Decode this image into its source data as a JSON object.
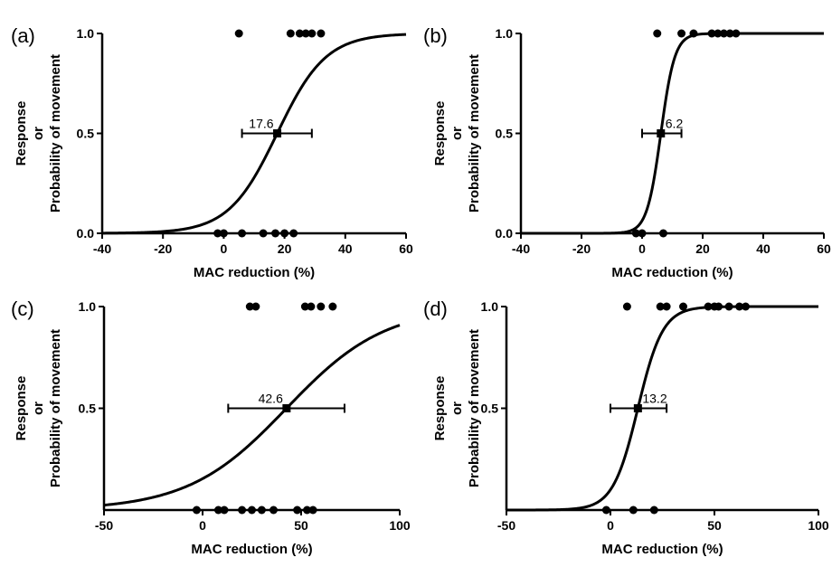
{
  "chart_data": [
    {
      "type": "scatter",
      "panel_label": "(a)",
      "xlabel": "MAC reduction (%)",
      "ylabel_lines": [
        "Response",
        "or",
        "Probability of movement"
      ],
      "xlim": [
        -40,
        60
      ],
      "ylim": [
        0,
        1
      ],
      "xticks": [
        -40,
        -20,
        0,
        20,
        40,
        60
      ],
      "yticks": [
        0.0,
        0.5,
        1.0
      ],
      "ytick_labels": [
        "0.0",
        "0.5",
        "1.0"
      ],
      "responders_y1": [
        5,
        22,
        25,
        27,
        29,
        32
      ],
      "nonresponders_y0": [
        -2,
        0,
        6,
        13,
        17,
        20,
        23
      ],
      "fit_curve": {
        "ec50": 17.6,
        "slope": 8.0
      },
      "ec50_point": {
        "x": 17.6,
        "y": 0.5,
        "ci": [
          6,
          29
        ]
      },
      "ec50_label": "17.6"
    },
    {
      "type": "scatter",
      "panel_label": "(b)",
      "xlabel": "MAC reduction (%)",
      "ylabel_lines": [
        "Response",
        "or",
        "Probability of movement"
      ],
      "xlim": [
        -40,
        60
      ],
      "ylim": [
        0,
        1
      ],
      "xticks": [
        -40,
        -20,
        0,
        20,
        40,
        60
      ],
      "yticks": [
        0.0,
        0.5,
        1.0
      ],
      "ytick_labels": [
        "0.0",
        "0.5",
        "1.0"
      ],
      "responders_y1": [
        5,
        13,
        17,
        23,
        25,
        27,
        29,
        31
      ],
      "nonresponders_y0": [
        -2,
        0,
        7
      ],
      "fit_curve": {
        "ec50": 6.2,
        "slope": 2.3
      },
      "ec50_point": {
        "x": 6.2,
        "y": 0.5,
        "ci": [
          0,
          13
        ]
      },
      "ec50_label": "6.2"
    },
    {
      "type": "scatter",
      "panel_label": "(c)",
      "xlabel": "MAC reduction (%)",
      "ylabel_lines": [
        "Response",
        "or",
        "Probability of movement"
      ],
      "xlim": [
        -50,
        100
      ],
      "ylim": [
        0,
        1
      ],
      "xticks": [
        -50,
        0,
        50,
        100
      ],
      "yticks": [
        0.5,
        1.0
      ],
      "ytick_labels": [
        "0.5",
        "1.0"
      ],
      "responders_y1": [
        24,
        27,
        52,
        55,
        60,
        66
      ],
      "nonresponders_y0": [
        -3,
        8,
        11,
        20,
        25,
        30,
        36,
        48,
        53,
        56
      ],
      "fit_curve": {
        "ec50": 42.6,
        "slope": 25.0
      },
      "ec50_point": {
        "x": 42.6,
        "y": 0.5,
        "ci": [
          13,
          72
        ]
      },
      "ec50_label": "42.6"
    },
    {
      "type": "scatter",
      "panel_label": "(d)",
      "xlabel": "MAC reduction (%)",
      "ylabel_lines": [
        "Response",
        "or",
        "Probability of movement"
      ],
      "xlim": [
        -50,
        100
      ],
      "ylim": [
        0,
        1
      ],
      "xticks": [
        -50,
        0,
        50,
        100
      ],
      "yticks": [
        0.5,
        1.0
      ],
      "ytick_labels": [
        "0.5",
        "1.0"
      ],
      "responders_y1": [
        8,
        24,
        27,
        35,
        47,
        50,
        52,
        57,
        62,
        65
      ],
      "nonresponders_y0": [
        -2,
        11,
        21
      ],
      "fit_curve": {
        "ec50": 13.2,
        "slope": 6.0
      },
      "ec50_point": {
        "x": 13.2,
        "y": 0.5,
        "ci": [
          0,
          27
        ]
      },
      "ec50_label": "13.2"
    }
  ]
}
